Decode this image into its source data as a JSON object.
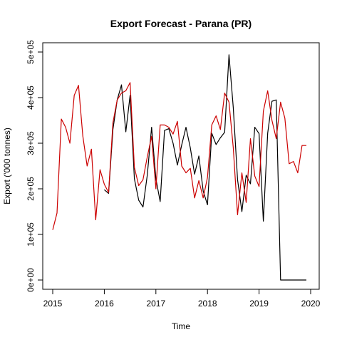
{
  "chart_data": {
    "type": "line",
    "title": "Export Forecast - Parana (PR)",
    "xlabel": "Time",
    "ylabel": "Export ('000 tonnes)",
    "xlim": [
      2015,
      2020
    ],
    "ylim": [
      0,
      500000
    ],
    "x_ticks": [
      2015,
      2016,
      2017,
      2018,
      2019,
      2020
    ],
    "x_tick_labels": [
      "2015",
      "2016",
      "2017",
      "2018",
      "2019",
      "2020"
    ],
    "y_ticks": [
      0,
      100000,
      200000,
      300000,
      400000,
      500000
    ],
    "y_tick_labels": [
      "0e+00",
      "1e+05",
      "2e+05",
      "3e+05",
      "4e+05",
      "5e+05"
    ],
    "grid": false,
    "series": [
      {
        "color": "#000000",
        "x": [
          2016.0,
          2016.083,
          2016.167,
          2016.25,
          2016.333,
          2016.417,
          2016.5,
          2016.583,
          2016.667,
          2016.75,
          2016.833,
          2016.917,
          2017.0,
          2017.083,
          2017.167,
          2017.25,
          2017.333,
          2017.417,
          2017.5,
          2017.583,
          2017.667,
          2017.75,
          2017.833,
          2017.917,
          2018.0,
          2018.083,
          2018.167,
          2018.25,
          2018.333,
          2018.417,
          2018.5,
          2018.583,
          2018.667,
          2018.75,
          2018.833,
          2018.917,
          2019.0,
          2019.083,
          2019.167,
          2019.25,
          2019.333,
          2019.417,
          2019.5,
          2019.583,
          2019.667,
          2019.75,
          2019.833,
          2019.917
        ],
        "values": [
          198000,
          190000,
          330000,
          395000,
          428000,
          325000,
          405000,
          222000,
          175000,
          160000,
          230000,
          335000,
          222000,
          172000,
          328000,
          332000,
          300000,
          252000,
          296000,
          335000,
          290000,
          232000,
          272000,
          195000,
          165000,
          322000,
          297000,
          312000,
          324000,
          494000,
          378000,
          220000,
          150000,
          230000,
          211000,
          335000,
          321000,
          129000,
          322000,
          392000,
          395000,
          0,
          0,
          0,
          0,
          0,
          0,
          0
        ]
      },
      {
        "color": "#cc0000",
        "x": [
          2015.0,
          2015.083,
          2015.167,
          2015.25,
          2015.333,
          2015.417,
          2015.5,
          2015.583,
          2015.667,
          2015.75,
          2015.833,
          2015.917,
          2016.0,
          2016.083,
          2016.167,
          2016.25,
          2016.333,
          2016.417,
          2016.5,
          2016.583,
          2016.667,
          2016.75,
          2016.833,
          2016.917,
          2017.0,
          2017.083,
          2017.167,
          2017.25,
          2017.333,
          2017.417,
          2017.5,
          2017.583,
          2017.667,
          2017.75,
          2017.833,
          2017.917,
          2018.0,
          2018.083,
          2018.167,
          2018.25,
          2018.333,
          2018.417,
          2018.5,
          2018.583,
          2018.667,
          2018.75,
          2018.833,
          2018.917,
          2019.0,
          2019.083,
          2019.167,
          2019.25,
          2019.333,
          2019.417,
          2019.5,
          2019.583,
          2019.667,
          2019.75,
          2019.833,
          2019.917
        ],
        "values": [
          110000,
          147000,
          353000,
          335000,
          300000,
          405000,
          427000,
          316000,
          250000,
          287000,
          132000,
          242000,
          210000,
          192000,
          345000,
          395000,
          410000,
          415000,
          433000,
          247000,
          207000,
          220000,
          270000,
          315000,
          200000,
          340000,
          340000,
          335000,
          320000,
          348000,
          250000,
          235000,
          245000,
          180000,
          218000,
          180000,
          225000,
          340000,
          360000,
          330000,
          410000,
          390000,
          290000,
          143000,
          235000,
          170000,
          310000,
          228000,
          205000,
          370000,
          415000,
          350000,
          310000,
          390000,
          355000,
          255000,
          260000,
          235000,
          295000,
          295000
        ]
      }
    ]
  }
}
